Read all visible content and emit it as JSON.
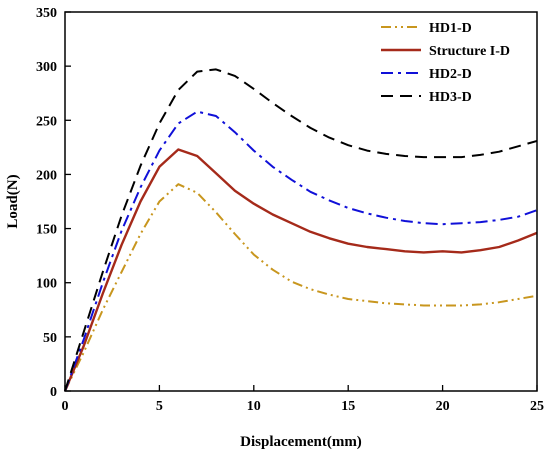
{
  "chart_data": {
    "type": "line",
    "xlabel": "Displacement(mm)",
    "ylabel": "Load(N)",
    "xlim": [
      0,
      25
    ],
    "ylim": [
      0,
      350
    ],
    "xticks": [
      0,
      5,
      10,
      15,
      20,
      25
    ],
    "yticks": [
      0,
      50,
      100,
      150,
      200,
      250,
      300,
      350
    ],
    "grid": false,
    "legend_position": "top-right",
    "series": [
      {
        "name": "HD1-D",
        "color": "#c8961e",
        "style": "dash-dot-dot",
        "x": [
          0,
          1,
          2,
          3,
          4,
          5,
          6,
          7,
          8,
          9,
          10,
          11,
          12,
          13,
          14,
          15,
          16,
          17,
          18,
          19,
          20,
          21,
          22,
          23,
          24,
          25
        ],
        "y": [
          0,
          36,
          75,
          110,
          145,
          175,
          191,
          183,
          165,
          145,
          126,
          112,
          101,
          94,
          89,
          85,
          83,
          81,
          80,
          79,
          79,
          79,
          80,
          82,
          85,
          88
        ]
      },
      {
        "name": "Structure I-D",
        "color": "#a52a1a",
        "style": "solid",
        "x": [
          0,
          1,
          2,
          3,
          4,
          5,
          6,
          7,
          8,
          9,
          10,
          11,
          12,
          13,
          14,
          15,
          16,
          17,
          18,
          19,
          20,
          21,
          22,
          23,
          24,
          25
        ],
        "y": [
          0,
          42,
          90,
          135,
          175,
          207,
          223,
          217,
          201,
          185,
          173,
          163,
          155,
          147,
          141,
          136,
          133,
          131,
          129,
          128,
          129,
          128,
          130,
          133,
          139,
          146
        ]
      },
      {
        "name": "HD2-D",
        "color": "#1010d8",
        "style": "dash-dot",
        "x": [
          0,
          1,
          2,
          3,
          4,
          5,
          6,
          7,
          8,
          9,
          10,
          11,
          12,
          13,
          14,
          15,
          16,
          17,
          18,
          19,
          20,
          21,
          22,
          23,
          24,
          25
        ],
        "y": [
          0,
          48,
          100,
          148,
          188,
          222,
          247,
          258,
          254,
          239,
          222,
          207,
          195,
          184,
          176,
          169,
          164,
          160,
          157,
          155,
          154,
          155,
          156,
          158,
          161,
          167
        ]
      },
      {
        "name": "HD3-D",
        "color": "#000000",
        "style": "dashed",
        "x": [
          0,
          1,
          2,
          3,
          4,
          5,
          6,
          7,
          8,
          9,
          10,
          11,
          12,
          13,
          14,
          15,
          16,
          17,
          18,
          19,
          20,
          21,
          22,
          23,
          24,
          25
        ],
        "y": [
          0,
          55,
          110,
          162,
          208,
          247,
          278,
          295,
          297,
          291,
          279,
          266,
          254,
          243,
          234,
          227,
          222,
          219,
          217,
          216,
          216,
          216,
          218,
          221,
          226,
          231
        ]
      }
    ]
  }
}
